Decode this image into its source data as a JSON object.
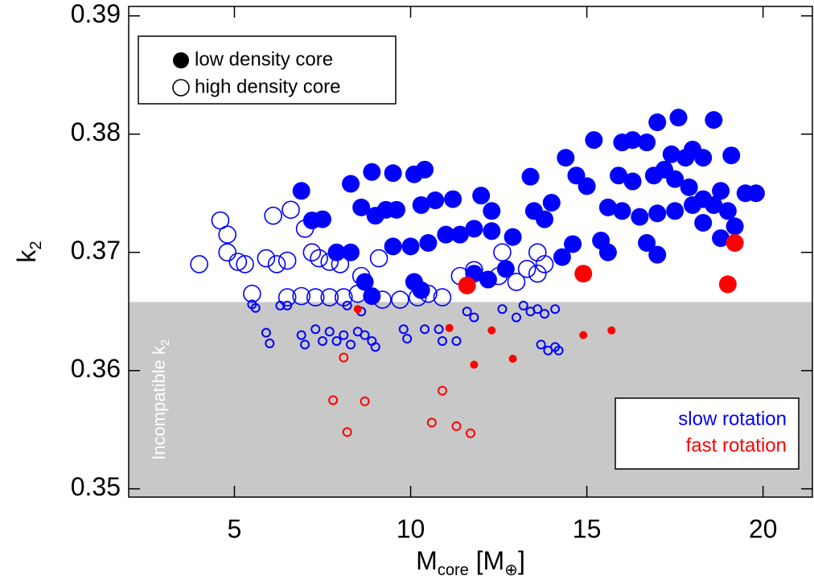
{
  "chart_data": {
    "type": "scatter",
    "xlabel": [
      "M",
      "core",
      " [M",
      "⊕",
      "]"
    ],
    "ylabel": [
      "k",
      "2"
    ],
    "xlim": [
      2,
      21.4
    ],
    "xticks": [
      5,
      10,
      15,
      20
    ],
    "ylim": [
      0.3493,
      0.3908
    ],
    "yticks": [
      {
        "value": 0.35,
        "label": "0.35"
      },
      {
        "value": 0.36,
        "label": "0.36"
      },
      {
        "value": 0.37,
        "label": "0.37"
      },
      {
        "value": 0.38,
        "label": "0.38"
      },
      {
        "value": 0.39,
        "label": "0.39"
      }
    ],
    "band": {
      "below": 0.3658,
      "label": [
        "Incompatible k",
        "2"
      ],
      "color": "#c8c8c8"
    },
    "marker_legend": [
      {
        "label": "low density core",
        "filled": true
      },
      {
        "label": "high density core",
        "filled": false
      }
    ],
    "color_legend": [
      {
        "label": "slow rotation",
        "color": "#0000ff"
      },
      {
        "label": "fast rotation",
        "color": "#ff0000"
      }
    ],
    "series": [
      {
        "filled": true,
        "color": "#0000ff",
        "x": [
          6.9,
          8.3,
          8.9,
          9.5,
          10.1,
          10.4,
          8.6,
          9.0,
          9.3,
          9.6,
          10.3,
          10.7,
          11.2,
          12.0,
          12.3,
          7.2,
          7.5,
          8.3,
          7.9,
          8.7,
          8.9,
          9.5,
          10.0,
          10.5,
          11.0,
          11.4,
          11.8,
          12.3,
          12.9,
          13.5,
          13.8,
          14.0,
          14.6,
          14.3,
          12.2,
          12.7,
          11.8,
          10.1,
          10.3,
          13.4,
          14.4,
          14.7,
          15.2,
          15.0,
          15.6,
          15.4,
          15.6,
          16.0,
          16.3,
          16.7,
          17.0,
          17.6,
          17.4,
          17.8,
          18.0,
          18.3,
          18.6,
          19.1,
          15.9,
          16.3,
          16.9,
          17.2,
          17.5,
          17.9,
          18.3,
          18.8,
          19.5,
          19.8,
          16.0,
          16.5,
          17.0,
          17.5,
          18.0,
          18.6,
          19.0,
          16.7,
          17.0,
          18.3,
          18.8,
          19.2
        ],
        "y": [
          0.3752,
          0.3758,
          0.3768,
          0.3767,
          0.3766,
          0.377,
          0.3738,
          0.3731,
          0.3736,
          0.3736,
          0.374,
          0.3744,
          0.3745,
          0.3748,
          0.3735,
          0.3727,
          0.3728,
          0.37,
          0.37,
          0.3675,
          0.3663,
          0.3705,
          0.3705,
          0.3708,
          0.3715,
          0.3715,
          0.372,
          0.3718,
          0.3713,
          0.3735,
          0.3728,
          0.3742,
          0.3707,
          0.3696,
          0.3677,
          0.3686,
          0.3682,
          0.3675,
          0.3668,
          0.3764,
          0.378,
          0.3765,
          0.3795,
          0.3756,
          0.3738,
          0.371,
          0.37,
          0.3793,
          0.3795,
          0.3793,
          0.381,
          0.3814,
          0.3783,
          0.378,
          0.3787,
          0.378,
          0.3812,
          0.3782,
          0.3765,
          0.376,
          0.3765,
          0.377,
          0.3762,
          0.3755,
          0.3745,
          0.3752,
          0.375,
          0.375,
          0.3735,
          0.373,
          0.3733,
          0.3735,
          0.374,
          0.374,
          0.3735,
          0.3708,
          0.3698,
          0.3725,
          0.3712,
          0.3722
        ]
      },
      {
        "filled": false,
        "color": "#0000ff",
        "x": [
          4.0,
          4.6,
          4.8,
          4.8,
          5.1,
          5.3,
          5.5,
          5.9,
          6.2,
          6.5,
          6.1,
          6.6,
          7.0,
          7.2,
          7.4,
          7.7,
          6.5,
          6.9,
          7.3,
          7.7,
          8.1,
          8.5,
          8.0,
          8.6,
          9.1,
          9.2,
          9.7,
          10.2,
          10.5,
          10.9,
          11.4,
          11.8,
          12.5,
          13.0,
          13.3,
          13.6,
          13.8,
          13.6,
          12.6,
          5.5,
          5.6,
          5.9,
          6.0,
          6.3,
          6.5,
          6.9,
          7.0,
          7.3,
          7.5,
          7.7,
          7.9,
          8.1,
          8.3,
          8.5,
          8.7,
          8.9,
          9.0,
          8.2,
          8.6,
          9.8,
          9.9,
          10.4,
          10.8,
          10.9,
          11.3,
          11.6,
          11.8,
          12.6,
          13.0,
          13.2,
          13.4,
          13.6,
          13.8,
          14.1,
          13.7,
          14.1,
          14.2,
          13.9
        ],
        "y": [
          0.369,
          0.3727,
          0.3715,
          0.37,
          0.3692,
          0.369,
          0.3665,
          0.3695,
          0.369,
          0.3693,
          0.3731,
          0.3736,
          0.372,
          0.37,
          0.3695,
          0.3692,
          0.3662,
          0.3663,
          0.3662,
          0.3662,
          0.3662,
          0.3665,
          0.369,
          0.368,
          0.3695,
          0.366,
          0.366,
          0.3662,
          0.3665,
          0.3662,
          0.368,
          0.3685,
          0.368,
          0.3675,
          0.3686,
          0.3682,
          0.369,
          0.37,
          0.37,
          0.3656,
          0.3653,
          0.3632,
          0.3623,
          0.3655,
          0.3655,
          0.363,
          0.3622,
          0.3635,
          0.3625,
          0.3633,
          0.3625,
          0.363,
          0.3622,
          0.3633,
          0.363,
          0.3625,
          0.362,
          0.3655,
          0.365,
          0.3635,
          0.3627,
          0.3635,
          0.3635,
          0.3625,
          0.3625,
          0.365,
          0.3645,
          0.3652,
          0.3645,
          0.3655,
          0.365,
          0.3652,
          0.3648,
          0.3652,
          0.3622,
          0.362,
          0.3617,
          0.3617
        ]
      },
      {
        "filled": true,
        "color": "#ff0000",
        "x": [
          11.6,
          14.9,
          19.0,
          19.2,
          8.5,
          11.1,
          12.3,
          11.8,
          12.9,
          14.9,
          15.7
        ],
        "y": [
          0.3672,
          0.3682,
          0.3673,
          0.3708,
          0.3652,
          0.3636,
          0.3634,
          0.3605,
          0.361,
          0.363,
          0.3634
        ]
      },
      {
        "filled": false,
        "color": "#ff0000",
        "x": [
          8.1,
          7.8,
          8.7,
          10.9,
          10.6,
          11.3,
          11.7,
          8.2
        ],
        "y": [
          0.3611,
          0.3575,
          0.3574,
          0.3583,
          0.3556,
          0.3553,
          0.3547,
          0.3548
        ]
      }
    ]
  }
}
